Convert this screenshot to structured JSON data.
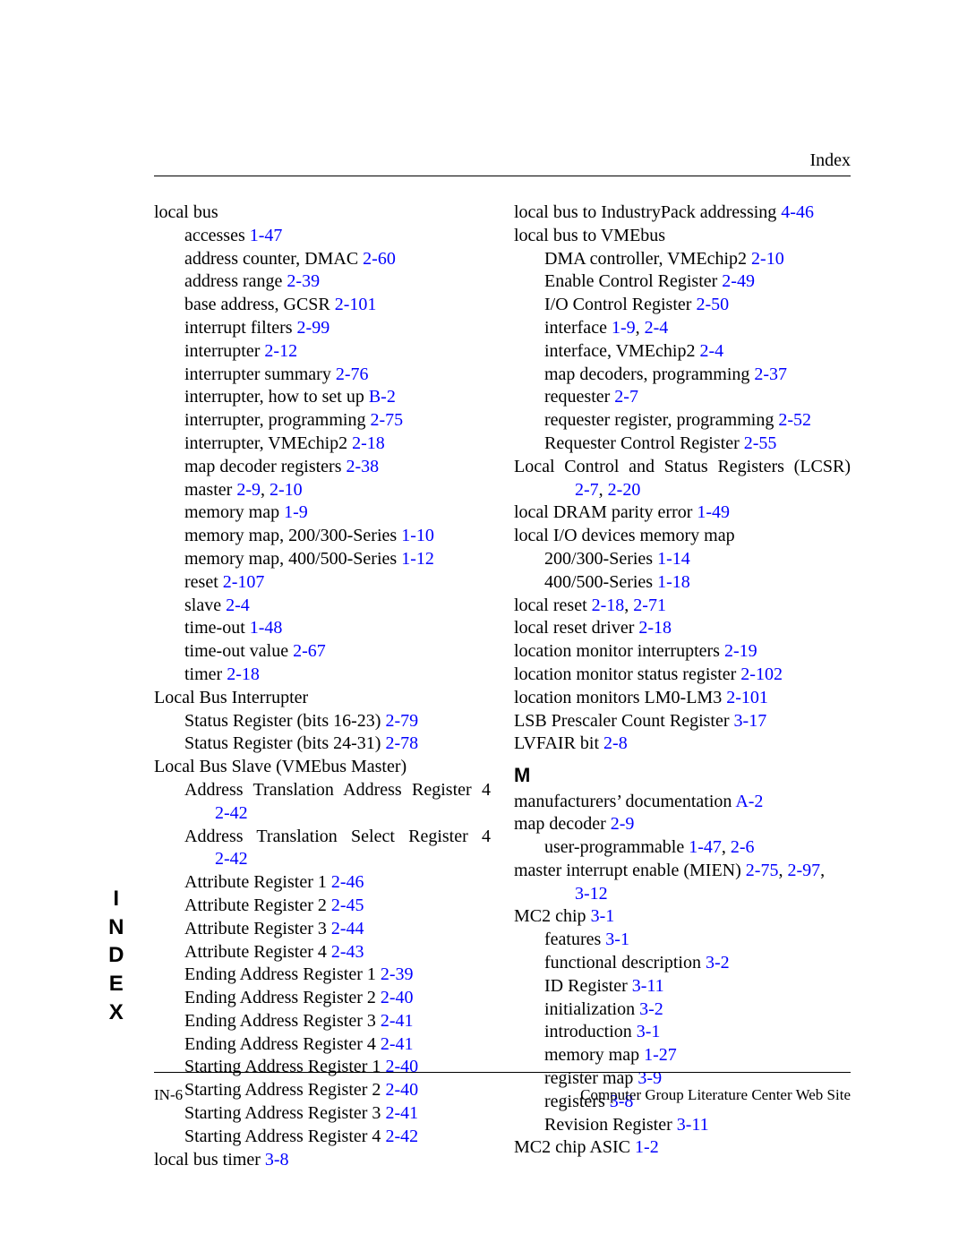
{
  "header": {
    "right": "Index"
  },
  "side_tab": [
    "I",
    "N",
    "D",
    "E",
    "X"
  ],
  "footer": {
    "left": "IN-6",
    "right": "Computer Group Literature Center Web Site"
  },
  "left_col": [
    {
      "cls": "entry",
      "t": "local bus"
    },
    {
      "cls": "sub",
      "t": "accesses ",
      "refs": [
        "1-47"
      ]
    },
    {
      "cls": "sub",
      "t": "address counter, DMAC ",
      "refs": [
        "2-60"
      ]
    },
    {
      "cls": "sub",
      "t": "address range ",
      "refs": [
        "2-39"
      ]
    },
    {
      "cls": "sub",
      "t": "base address, GCSR ",
      "refs": [
        "2-101"
      ]
    },
    {
      "cls": "sub",
      "t": "interrupt filters ",
      "refs": [
        "2-99"
      ]
    },
    {
      "cls": "sub",
      "t": "interrupter ",
      "refs": [
        "2-12"
      ]
    },
    {
      "cls": "sub",
      "t": "interrupter summary ",
      "refs": [
        "2-76"
      ]
    },
    {
      "cls": "sub",
      "t": "interrupter, how to set up ",
      "refs": [
        "B-2"
      ]
    },
    {
      "cls": "sub",
      "t": "interrupter, programming ",
      "refs": [
        "2-75"
      ]
    },
    {
      "cls": "sub",
      "t": "interrupter, VMEchip2 ",
      "refs": [
        "2-18"
      ]
    },
    {
      "cls": "sub",
      "t": "map decoder registers ",
      "refs": [
        "2-38"
      ]
    },
    {
      "cls": "sub",
      "t": "master ",
      "refs": [
        "2-9"
      ],
      "after": ", ",
      "refs2": [
        "2-10"
      ]
    },
    {
      "cls": "sub",
      "t": "memory map ",
      "refs": [
        "1-9"
      ]
    },
    {
      "cls": "sub",
      "t": "memory map, 200/300-Series ",
      "refs": [
        "1-10"
      ]
    },
    {
      "cls": "sub",
      "t": "memory map, 400/500-Series ",
      "refs": [
        "1-12"
      ]
    },
    {
      "cls": "sub",
      "t": "reset ",
      "refs": [
        "2-107"
      ]
    },
    {
      "cls": "sub",
      "t": "slave ",
      "refs": [
        "2-4"
      ]
    },
    {
      "cls": "sub",
      "t": "time-out ",
      "refs": [
        "1-48"
      ]
    },
    {
      "cls": "sub",
      "t": "time-out value ",
      "refs": [
        "2-67"
      ]
    },
    {
      "cls": "sub",
      "t": "timer ",
      "refs": [
        "2-18"
      ]
    },
    {
      "cls": "entry",
      "t": "Local Bus Interrupter"
    },
    {
      "cls": "sub",
      "t": "Status Register (bits 16-23) ",
      "refs": [
        "2-79"
      ]
    },
    {
      "cls": "sub",
      "t": "Status Register (bits 24-31) ",
      "refs": [
        "2-78"
      ]
    },
    {
      "cls": "entry",
      "t": "Local Bus Slave (VMEbus Master)"
    },
    {
      "cls": "sub justify",
      "t": "Address Translation Address Register 4"
    },
    {
      "cls": "subsub",
      "t": "",
      "refs": [
        "2-42"
      ]
    },
    {
      "cls": "sub justify",
      "t": "Address Translation Select Register 4"
    },
    {
      "cls": "subsub",
      "t": "",
      "refs": [
        "2-42"
      ]
    },
    {
      "cls": "sub",
      "t": "Attribute Register 1 ",
      "refs": [
        "2-46"
      ]
    },
    {
      "cls": "sub",
      "t": "Attribute Register 2 ",
      "refs": [
        "2-45"
      ]
    },
    {
      "cls": "sub",
      "t": "Attribute Register 3 ",
      "refs": [
        "2-44"
      ]
    },
    {
      "cls": "sub",
      "t": "Attribute Register 4 ",
      "refs": [
        "2-43"
      ]
    },
    {
      "cls": "sub",
      "t": "Ending Address Register 1 ",
      "refs": [
        "2-39"
      ]
    },
    {
      "cls": "sub",
      "t": "Ending Address Register 2 ",
      "refs": [
        "2-40"
      ]
    },
    {
      "cls": "sub",
      "t": "Ending Address Register 3 ",
      "refs": [
        "2-41"
      ]
    },
    {
      "cls": "sub",
      "t": "Ending Address Register 4 ",
      "refs": [
        "2-41"
      ]
    },
    {
      "cls": "sub",
      "t": "Starting Address Register 1 ",
      "refs": [
        "2-40"
      ]
    },
    {
      "cls": "sub",
      "t": "Starting Address Register 2 ",
      "refs": [
        "2-40"
      ]
    },
    {
      "cls": "sub",
      "t": "Starting Address Register 3 ",
      "refs": [
        "2-41"
      ]
    },
    {
      "cls": "sub",
      "t": "Starting Address Register 4 ",
      "refs": [
        "2-42"
      ]
    },
    {
      "cls": "entry",
      "t": "local bus timer ",
      "refs": [
        "3-8"
      ]
    }
  ],
  "right_col": [
    {
      "cls": "entry",
      "t": "local bus to IndustryPack addressing ",
      "refs": [
        "4-46"
      ]
    },
    {
      "cls": "entry",
      "t": "local bus to VMEbus"
    },
    {
      "cls": "sub",
      "t": "DMA controller, VMEchip2 ",
      "refs": [
        "2-10"
      ]
    },
    {
      "cls": "sub",
      "t": "Enable Control Register ",
      "refs": [
        "2-49"
      ]
    },
    {
      "cls": "sub",
      "t": "I/O Control Register ",
      "refs": [
        "2-50"
      ]
    },
    {
      "cls": "sub",
      "t": "interface ",
      "refs": [
        "1-9"
      ],
      "after": ",  ",
      "refs2": [
        "2-4"
      ]
    },
    {
      "cls": "sub",
      "t": "interface, VMEchip2 ",
      "refs": [
        "2-4"
      ]
    },
    {
      "cls": "sub",
      "t": "map decoders, programming ",
      "refs": [
        "2-37"
      ]
    },
    {
      "cls": "sub",
      "t": "requester ",
      "refs": [
        "2-7"
      ]
    },
    {
      "cls": "sub",
      "t": "requester register, programming ",
      "refs": [
        "2-52"
      ]
    },
    {
      "cls": "sub",
      "t": "Requester Control Register ",
      "refs": [
        "2-55"
      ]
    },
    {
      "cls": "entry justify",
      "t": "Local Control and Status Registers (LCSR)"
    },
    {
      "cls": "subsub",
      "t": "",
      "refs": [
        "2-7"
      ],
      "after": ", ",
      "refs2": [
        "2-20"
      ]
    },
    {
      "cls": "entry",
      "t": "local DRAM parity error ",
      "refs": [
        "1-49"
      ]
    },
    {
      "cls": "entry",
      "t": "local I/O devices memory map"
    },
    {
      "cls": "sub",
      "t": "200/300-Series ",
      "refs": [
        "1-14"
      ]
    },
    {
      "cls": "sub",
      "t": "400/500-Series ",
      "refs": [
        "1-18"
      ]
    },
    {
      "cls": "entry",
      "t": "local reset ",
      "refs": [
        "2-18"
      ],
      "after": ", ",
      "refs2": [
        "2-71"
      ]
    },
    {
      "cls": "entry",
      "t": "local reset driver ",
      "refs": [
        "2-18"
      ]
    },
    {
      "cls": "entry",
      "t": "location monitor interrupters ",
      "refs": [
        "2-19"
      ]
    },
    {
      "cls": "entry",
      "t": "location monitor status register ",
      "refs": [
        "2-102"
      ]
    },
    {
      "cls": "entry",
      "t": "location monitors LM0-LM3 ",
      "refs": [
        "2-101"
      ]
    },
    {
      "cls": "entry",
      "t": "LSB Prescaler Count Register ",
      "refs": [
        "3-17"
      ]
    },
    {
      "cls": "entry",
      "t": "LVFAIR bit ",
      "refs": [
        "2-8"
      ]
    },
    {
      "cls": "sec-letter",
      "t": "M"
    },
    {
      "cls": "entry",
      "t": "manufacturers’ documentation ",
      "refs": [
        "A-2"
      ]
    },
    {
      "cls": "entry",
      "t": "map decoder ",
      "refs": [
        "2-9"
      ]
    },
    {
      "cls": "sub",
      "t": "user-programmable ",
      "refs": [
        "1-47"
      ],
      "after": ", ",
      "refs2": [
        "2-6"
      ]
    },
    {
      "cls": "entry",
      "t": "master interrupt enable (MIEN) ",
      "refs": [
        "2-75"
      ],
      "after": ", ",
      "refs2": [
        "2-97"
      ],
      "after2": ","
    },
    {
      "cls": "subsub",
      "t": "",
      "refs": [
        "3-12"
      ]
    },
    {
      "cls": "entry",
      "t": "MC2 chip ",
      "refs": [
        "3-1"
      ]
    },
    {
      "cls": "sub",
      "t": "features ",
      "refs": [
        "3-1"
      ]
    },
    {
      "cls": "sub",
      "t": "functional description ",
      "refs": [
        "3-2"
      ]
    },
    {
      "cls": "sub",
      "t": "ID Register ",
      "refs": [
        "3-11"
      ]
    },
    {
      "cls": "sub",
      "t": "initialization ",
      "refs": [
        "3-2"
      ]
    },
    {
      "cls": "sub",
      "t": "introduction ",
      "refs": [
        "3-1"
      ]
    },
    {
      "cls": "sub",
      "t": "memory map ",
      "refs": [
        "1-27"
      ]
    },
    {
      "cls": "sub",
      "t": "register map ",
      "refs": [
        "3-9"
      ]
    },
    {
      "cls": "sub",
      "t": "registers ",
      "refs": [
        "3-8"
      ]
    },
    {
      "cls": "sub",
      "t": "Revision Register ",
      "refs": [
        "3-11"
      ]
    },
    {
      "cls": "entry",
      "t": "MC2 chip ASIC ",
      "refs": [
        "1-2"
      ]
    }
  ]
}
